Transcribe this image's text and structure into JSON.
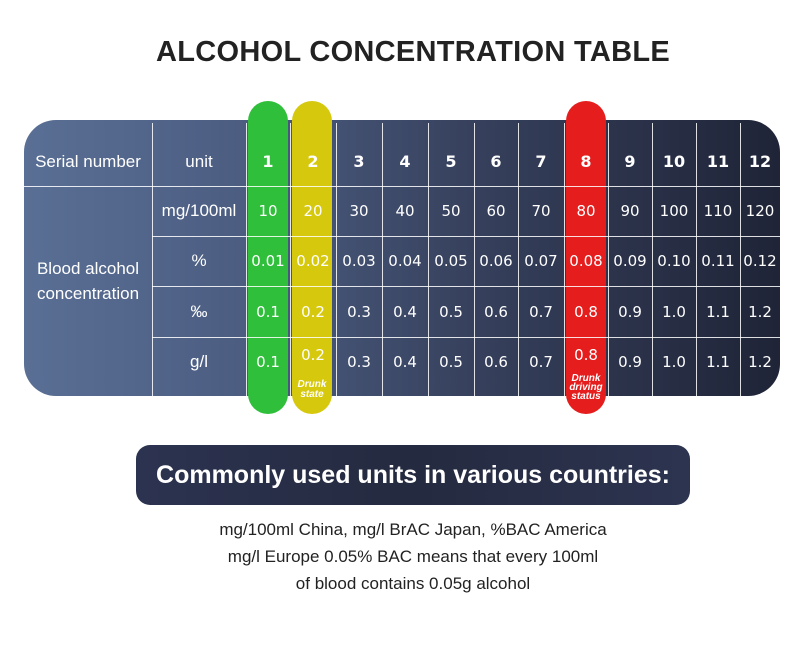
{
  "title": "ALCOHOL CONCENTRATION TABLE",
  "table": {
    "serial_label": "Serial number",
    "unit_label": "unit",
    "row_group_label_lines": [
      "Blood alcohol",
      "concentration"
    ],
    "serial_numbers": [
      "1",
      "2",
      "3",
      "4",
      "5",
      "6",
      "7",
      "8",
      "9",
      "10",
      "11",
      "12"
    ],
    "rows": [
      {
        "unit": "mg/100ml",
        "values": [
          "10",
          "20",
          "30",
          "40",
          "50",
          "60",
          "70",
          "80",
          "90",
          "100",
          "110",
          "120"
        ]
      },
      {
        "unit": "%",
        "values": [
          "0.01",
          "0.02",
          "0.03",
          "0.04",
          "0.05",
          "0.06",
          "0.07",
          "0.08",
          "0.09",
          "0.10",
          "0.11",
          "0.12"
        ]
      },
      {
        "unit": "‰",
        "values": [
          "0.1",
          "0.2",
          "0.3",
          "0.4",
          "0.5",
          "0.6",
          "0.7",
          "0.8",
          "0.9",
          "1.0",
          "1.1",
          "1.2"
        ]
      },
      {
        "unit": "g/l",
        "values": [
          "0.1",
          "0.2",
          "0.3",
          "0.4",
          "0.5",
          "0.6",
          "0.7",
          "0.8",
          "0.9",
          "1.0",
          "1.1",
          "1.2"
        ]
      }
    ],
    "highlight_colors": {
      "green": "#2fbf3b",
      "yellow": "#d6c80c",
      "red": "#e51d1d"
    },
    "drunk_state_note": [
      "Drunk",
      "state"
    ],
    "drunk_driving_note": [
      "Drunk",
      "driving",
      "status"
    ]
  },
  "units_banner": "Commonly used units in various countries:",
  "units_description_lines": [
    "mg/100ml China, mg/l BrAC Japan, %BAC America",
    "mg/l Europe 0.05% BAC means that every 100ml",
    "of blood contains 0.05g alcohol"
  ]
}
